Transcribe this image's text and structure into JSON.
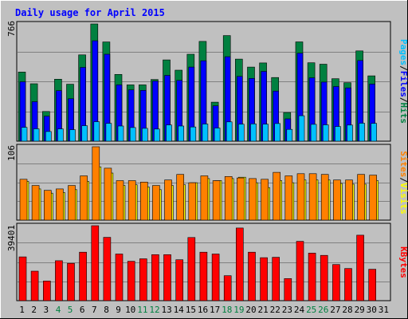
{
  "chart_data": {
    "type": "bar",
    "title": "Daily usage for April 2015",
    "categories": [
      "1",
      "2",
      "3",
      "4",
      "5",
      "6",
      "7",
      "8",
      "9",
      "10",
      "11",
      "12",
      "13",
      "14",
      "15",
      "16",
      "17",
      "18",
      "19",
      "20",
      "21",
      "22",
      "23",
      "24",
      "25",
      "26",
      "27",
      "28",
      "29",
      "30",
      "31"
    ],
    "weekend_days": [
      "4",
      "5",
      "11",
      "12",
      "18",
      "19",
      "25",
      "26"
    ],
    "panels": [
      {
        "id": "hits-panel",
        "ymax_label": "766",
        "ymax": 766,
        "series": [
          {
            "name": "Hits",
            "color": "#008040",
            "values": [
              452,
              375,
              194,
              405,
              372,
              564,
              766,
              648,
              436,
              368,
              368,
              403,
              531,
              464,
              568,
              652,
              255,
              690,
              536,
              484,
              511,
              416,
              187,
              649,
              512,
              503,
              408,
              382,
              590,
              427,
              0
            ]
          },
          {
            "name": "Files",
            "color": "#0000ff",
            "values": [
              388,
              258,
              163,
              330,
              277,
              482,
              656,
              568,
              368,
              335,
              332,
              393,
              430,
              397,
              484,
              525,
              231,
              552,
              423,
              410,
              456,
              327,
              146,
              575,
              414,
              386,
              357,
              348,
              527,
              373,
              0
            ]
          },
          {
            "name": "Pages",
            "color": "#00c0ff",
            "values": [
              90,
              81,
              63,
              80,
              75,
              101,
              127,
              116,
              99,
              89,
              84,
              79,
              106,
              99,
              93,
              112,
              86,
              126,
              111,
              113,
              111,
              115,
              77,
              166,
              110,
              107,
              96,
              105,
              117,
              116,
              0
            ]
          }
        ]
      },
      {
        "id": "visits-panel",
        "ymax_label": "106",
        "ymax": 106,
        "series": [
          {
            "name": "Visits",
            "color": "#ffff00",
            "values": [
              56,
              45,
              39,
              40,
              44,
              56,
              77,
              68,
              50,
              51,
              48,
              44,
              50,
              51,
              54,
              60,
              57,
              60,
              62,
              54,
              47,
              57,
              54,
              58,
              58,
              58,
              53,
              52,
              52,
              57,
              0
            ]
          },
          {
            "name": "Sites",
            "color": "#ff8000",
            "values": [
              59,
              50,
              43,
              45,
              50,
              64,
              106,
              75,
              57,
              57,
              55,
              50,
              58,
              66,
              54,
              64,
              57,
              63,
              61,
              60,
              59,
              69,
              64,
              67,
              67,
              66,
              58,
              58,
              66,
              65,
              0
            ]
          }
        ]
      },
      {
        "id": "kbytes-panel",
        "ymax_label": "39401",
        "ymax": 39401,
        "series": [
          {
            "name": "KBytes",
            "color": "#ff0000",
            "values": [
              23000,
              15500,
              10300,
              21000,
              19600,
              25500,
              39400,
              33300,
              24500,
              20700,
              22000,
              24200,
              24200,
              21500,
              33200,
              25500,
              24500,
              13100,
              38200,
              25500,
              22600,
              22800,
              11600,
              31200,
              25000,
              23800,
              19000,
              16900,
              34400,
              16500,
              0
            ]
          }
        ]
      }
    ],
    "legend_right": {
      "top": [
        {
          "text": "Pages",
          "color": "#00c0ff"
        },
        {
          "text": "/",
          "color": "#000000"
        },
        {
          "text": "Files",
          "color": "#0000ff"
        },
        {
          "text": "/",
          "color": "#000000"
        },
        {
          "text": "Hits",
          "color": "#008040"
        }
      ],
      "middle": [
        {
          "text": "Sites",
          "color": "#ff8000"
        },
        {
          "text": "/",
          "color": "#000000"
        },
        {
          "text": "Visits",
          "color": "#ffff00"
        }
      ],
      "bottom": [
        {
          "text": "KBytes",
          "color": "#ff0000"
        }
      ]
    },
    "colors": {
      "background": "#c0c0c0",
      "grid": "#808080",
      "title": "#0000ff",
      "weekday_label": "#000000",
      "weekend_label": "#008040"
    }
  }
}
